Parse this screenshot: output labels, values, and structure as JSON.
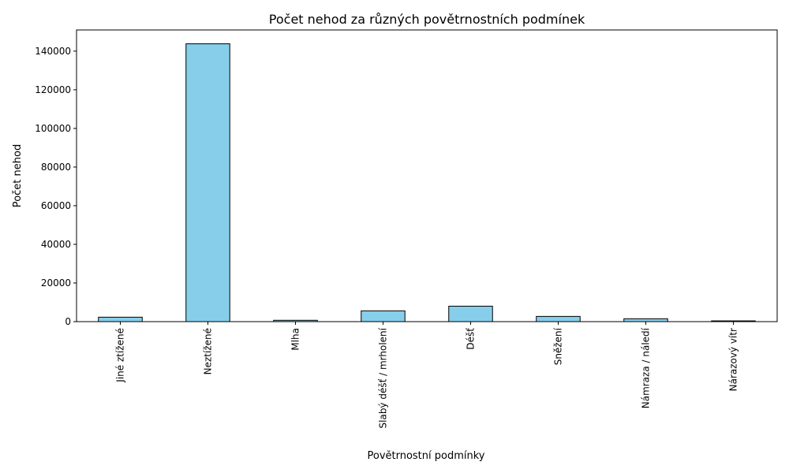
{
  "chart_data": {
    "type": "bar",
    "title": "Počet nehod za různých povětrnostních podmínek",
    "xlabel": "Povětrnostní podmínky",
    "ylabel": "Počet nehod",
    "categories": [
      "Jiné ztížené",
      "Neztížené",
      "Mlha",
      "Slabý déšť / mrholení",
      "Déšť",
      "Sněžení",
      "Námraza / náledí",
      "Nárazový vítr"
    ],
    "values": [
      2300,
      143800,
      700,
      5600,
      8000,
      2700,
      1500,
      400
    ],
    "ylim": [
      0,
      150964
    ],
    "yticks": [
      0,
      20000,
      40000,
      60000,
      80000,
      100000,
      120000,
      140000
    ],
    "grid": false,
    "legend": "none",
    "bar_color": "#87ceeb",
    "edge_color": "#000000"
  }
}
